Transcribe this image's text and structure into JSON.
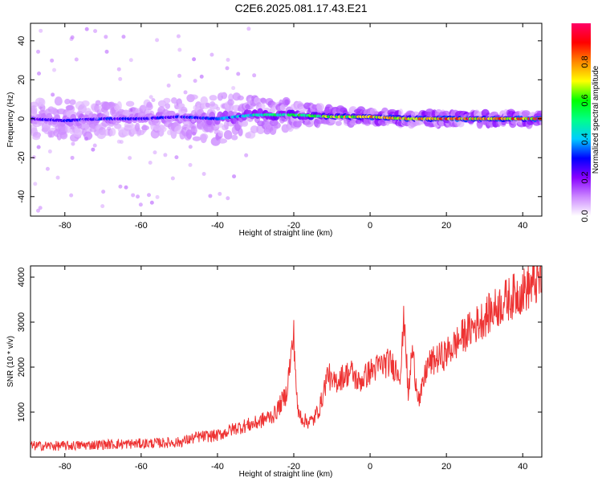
{
  "title": "C2E6.2025.081.17.43.E21",
  "chart_data": [
    {
      "type": "heatmap",
      "xlabel": "Height of straight line (km)",
      "ylabel": "Frequency (Hz)",
      "xlim": [
        -89,
        45
      ],
      "ylim": [
        -50,
        49
      ],
      "xticks": [
        -80,
        -60,
        -40,
        -20,
        0,
        20,
        40
      ],
      "yticks": [
        -40,
        -20,
        0,
        20,
        40
      ],
      "colorbar": {
        "label": "Normalized spectral amplitude",
        "range": [
          0.0,
          1.0
        ],
        "ticks": [
          0.0,
          0.2,
          0.4,
          0.6,
          0.8
        ],
        "colors": [
          "#ffffff",
          "#cc88ff",
          "#8800ff",
          "#0000ff",
          "#00ccff",
          "#00ff88",
          "#00ff00",
          "#ffff00",
          "#ff8800",
          "#ff0000",
          "#ff0066"
        ]
      },
      "grid": false,
      "profile": {
        "heights": [
          -89,
          -80,
          -70,
          -60,
          -50,
          -40,
          -30,
          -20,
          -10,
          0,
          10,
          20,
          30,
          45
        ],
        "center_freq": [
          0,
          -1,
          0,
          0,
          1,
          0,
          2,
          2,
          1,
          1,
          0,
          0,
          0,
          0
        ],
        "peak_amplitude": [
          0.3,
          0.32,
          0.33,
          0.3,
          0.33,
          0.38,
          0.5,
          0.62,
          0.72,
          0.85,
          0.9,
          0.92,
          0.92,
          0.9
        ],
        "spread_hz": [
          5,
          5,
          4,
          4,
          5,
          6,
          5,
          3,
          2,
          1.5,
          1.5,
          1.5,
          1.5,
          1.5
        ]
      }
    },
    {
      "type": "line",
      "xlabel": "Height of straight line (km)",
      "ylabel": "SNR (10 * v/v)",
      "xlim": [
        -89,
        45
      ],
      "ylim": [
        0,
        4250
      ],
      "xticks": [
        -80,
        -60,
        -40,
        -20,
        0,
        20,
        40
      ],
      "yticks": [
        1000,
        2000,
        3000,
        4000
      ],
      "color": "#ee3333",
      "grid": false,
      "x": [
        -89,
        -80,
        -70,
        -60,
        -50,
        -45,
        -40,
        -35,
        -30,
        -25,
        -22,
        -20,
        -19,
        -17,
        -15,
        -13,
        -11,
        -10,
        -8,
        -5,
        -3,
        0,
        3,
        5,
        7,
        8,
        9,
        10,
        11,
        12,
        13,
        15,
        20,
        25,
        30,
        35,
        40,
        45
      ],
      "values": [
        250,
        250,
        280,
        300,
        330,
        450,
        480,
        650,
        750,
        950,
        1400,
        2700,
        1000,
        800,
        800,
        1150,
        1900,
        1600,
        1750,
        1900,
        1650,
        1900,
        2050,
        2100,
        1950,
        1900,
        3200,
        1300,
        2400,
        1700,
        1250,
        2050,
        2300,
        2750,
        3100,
        3450,
        3700,
        3950
      ]
    }
  ]
}
